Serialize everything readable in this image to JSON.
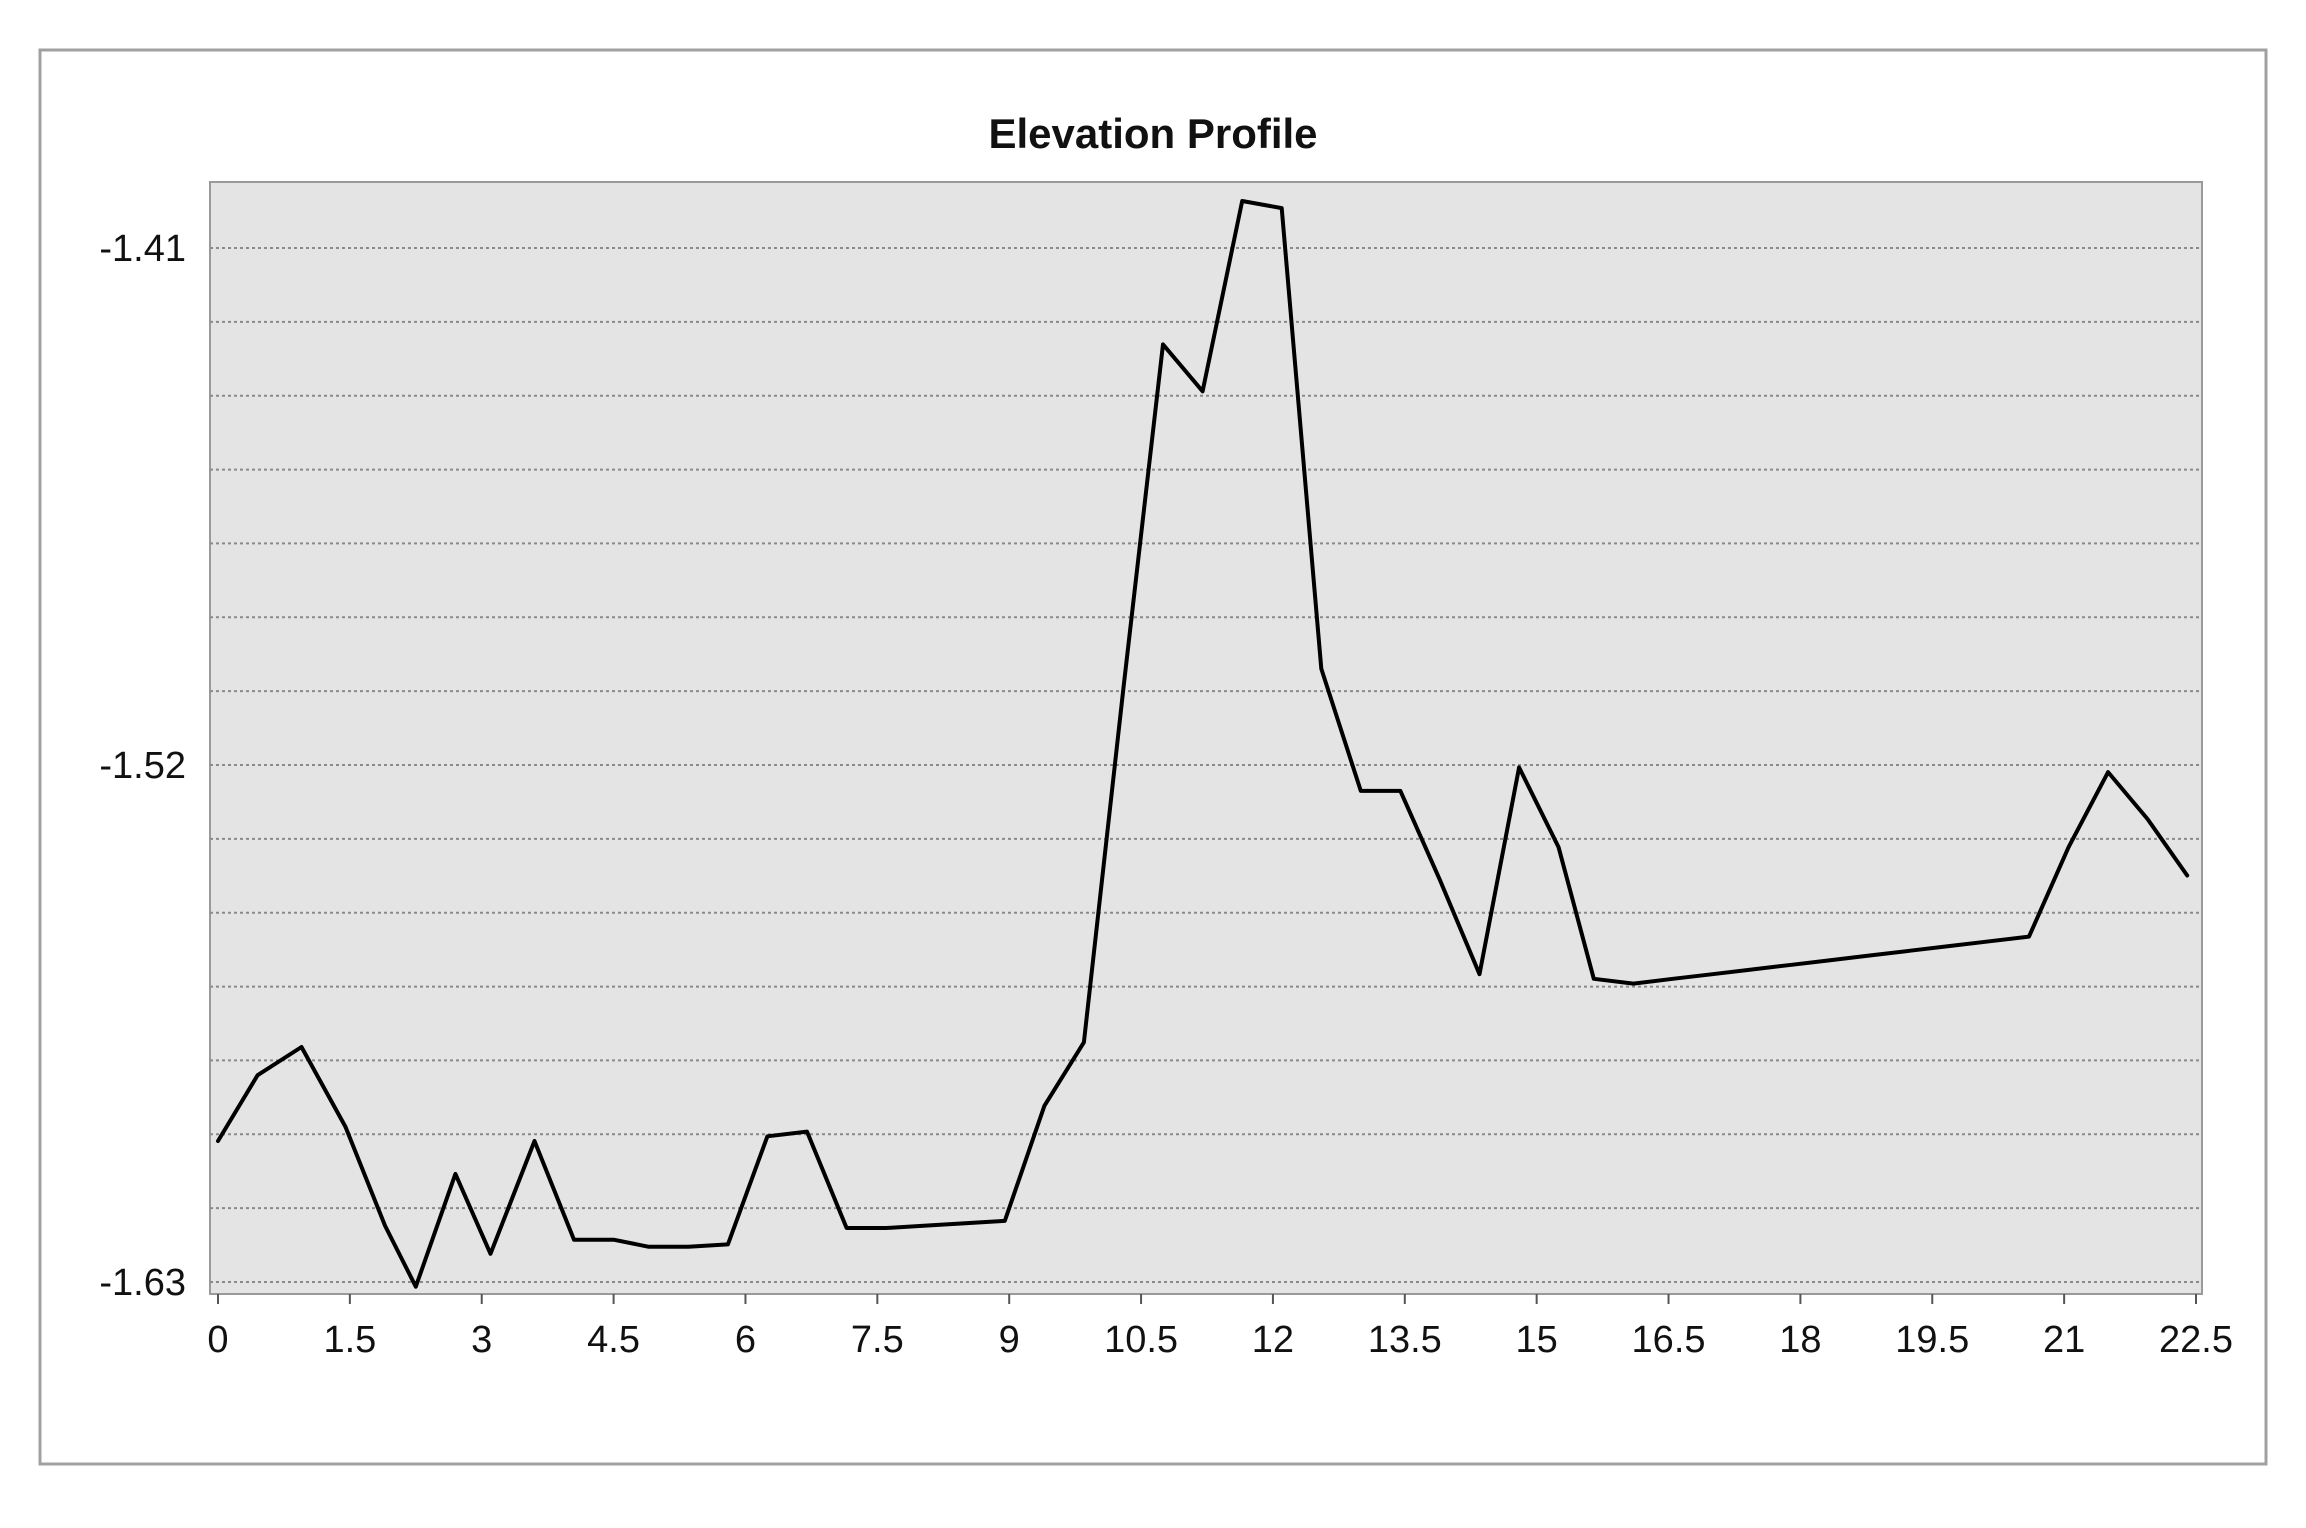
{
  "chart_data": {
    "type": "line",
    "title": "Elevation Profile",
    "xlabel": "",
    "ylabel": "",
    "xlim": [
      0,
      22.5
    ],
    "ylim": [
      -1.63,
      -1.397
    ],
    "x_ticks": [
      0,
      1.5,
      3,
      4.5,
      6,
      7.5,
      9,
      10.5,
      12,
      13.5,
      15,
      16.5,
      18,
      19.5,
      21,
      22.5
    ],
    "x_tick_labels": [
      "0",
      "1.5",
      "3",
      "4.5",
      "6",
      "7.5",
      "9",
      "10.5",
      "12",
      "13.5",
      "15",
      "16.5",
      "18",
      "19.5",
      "21",
      "22.5"
    ],
    "y_ticks": [
      -1.41,
      -1.52,
      -1.63
    ],
    "y_tick_labels": [
      "-1.41",
      "-1.52",
      "-1.63"
    ],
    "grid": true,
    "grid_style": "dotted horizontal",
    "legend": "none",
    "colors": {
      "plot_background": "#e4e4e4",
      "line": "#000000",
      "grid": "#8a8a8a",
      "frame": "#9a9a9a"
    },
    "series": [
      {
        "x": [
          0,
          0.45,
          0.95,
          1.45,
          1.9,
          2.25,
          2.7,
          3.1,
          3.6,
          4.05,
          4.5,
          4.9,
          5.35,
          5.8,
          6.25,
          6.7,
          7.15,
          7.6,
          8.05,
          8.5,
          8.95,
          9.4,
          9.85,
          10.3,
          10.75,
          11.2,
          11.65,
          12.1,
          12.55,
          13,
          13.45,
          13.9,
          14.35,
          14.8,
          15.25,
          15.65,
          16.1,
          16.55,
          17,
          17.45,
          17.9,
          18.35,
          18.8,
          19.25,
          19.7,
          20.15,
          20.6,
          21.05,
          21.5,
          21.95,
          22.4
        ],
        "y": [
          -1.6,
          -1.586,
          -1.58,
          -1.597,
          -1.618,
          -1.631,
          -1.607,
          -1.624,
          -1.6,
          -1.621,
          -1.621,
          -1.6225,
          -1.6225,
          -1.622,
          -1.599,
          -1.598,
          -1.6185,
          -1.6185,
          -1.618,
          -1.6175,
          -1.617,
          -1.5925,
          -1.579,
          -1.5035,
          -1.4305,
          -1.4405,
          -1.4,
          -1.4015,
          -1.4995,
          -1.5255,
          -1.5255,
          -1.5445,
          -1.5645,
          -1.5205,
          -1.5375,
          -1.5655,
          -1.5665,
          -1.5655,
          -1.5645,
          -1.5635,
          -1.5625,
          -1.5615,
          -1.5605,
          -1.5595,
          -1.5585,
          -1.5575,
          -1.5565,
          -1.5375,
          -1.5215,
          -1.5315,
          -1.5435
        ]
      }
    ]
  }
}
